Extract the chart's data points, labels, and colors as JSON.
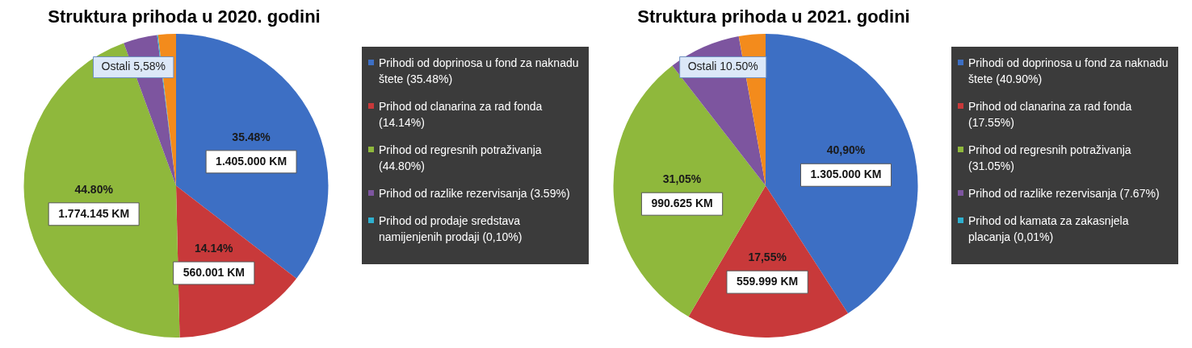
{
  "chart_data": [
    {
      "type": "pie",
      "title": "Struktura prihoda u 2020. godini",
      "legend": "right",
      "categories": [
        "Prihodi od doprinosa u fond za naknadu štete (35.48%)",
        "Prihod od clanarina za rad fonda (14.14%)",
        "Prihod od regresnih potraživanja (44.80%)",
        "Prihod od razlike rezervisanja (3.59%)",
        "Prihod od prodaje sredstava namijenjenih prodaji (0,10%)",
        null
      ],
      "values": [
        35.48,
        14.14,
        44.8,
        3.59,
        0.1,
        1.89
      ],
      "colors": [
        "#3d6fc4",
        "#c8393a",
        "#8fb83c",
        "#7d559f",
        "#2fb0cf",
        "#f38b1c"
      ],
      "value_labels": [
        "35.48%",
        "14.14%",
        "44.80%",
        null,
        null,
        null
      ],
      "annotations": [
        {
          "text": "1.405.000 KM",
          "x": "Prihodi od doprinosa u fond za naknadu štete (35.48%)"
        },
        {
          "text": "560.001 KM",
          "x": "Prihod od clanarina za rad fonda (14.14%)"
        },
        {
          "text": "1.774.145 KM",
          "x": "Prihod od regresnih potraživanja (44.80%)"
        },
        "Ostali 5,58%"
      ]
    },
    {
      "type": "pie",
      "title": "Struktura prihoda u 2021. godini",
      "legend": "right",
      "categories": [
        "Prihodi od doprinosa u fond za naknadu štete (40.90%)",
        "Prihod od clanarina za rad fonda (17.55%)",
        "Prihod od regresnih potraživanja (31.05%)",
        "Prihod od razlike rezervisanja (7.67%)",
        "Prihod od kamata za zakasnjela placanja (0,01%)",
        null
      ],
      "values": [
        40.9,
        17.55,
        31.05,
        7.67,
        0.01,
        2.82
      ],
      "colors": [
        "#3d6fc4",
        "#c8393a",
        "#8fb83c",
        "#7d559f",
        "#2fb0cf",
        "#f38b1c"
      ],
      "value_labels": [
        "40,90%",
        "17,55%",
        "31,05%",
        null,
        null,
        null
      ],
      "annotations": [
        {
          "text": "1.305.000 KM",
          "x": "Prihodi od doprinosa u fond za naknadu štete (40.90%)"
        },
        {
          "text": "559.999 KM",
          "x": "Prihod od clanarina za rad fonda (17.55%)"
        },
        {
          "text": "990.625 KM",
          "x": "Prihod od regresnih potraživanja (31.05%)"
        },
        "Ostali 10.50%"
      ]
    }
  ]
}
